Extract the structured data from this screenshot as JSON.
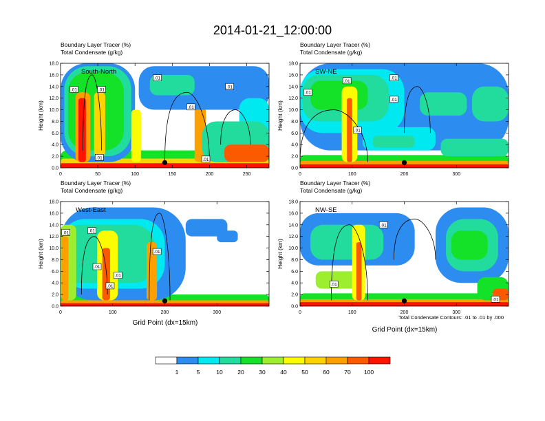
{
  "title": "2014-01-21_12:00:00",
  "panel_header": {
    "line1": "Boundary Layer Tracer",
    "unit1": "(%)",
    "line2": "Total Condensate",
    "unit2": "(g/kg)"
  },
  "ylabel": "Height (km)",
  "xlabel": "Grid Point (dx=15km)",
  "contour_note": "Total Condensate Contours: .01 to .01 by .000",
  "y_ticks": [
    "0.0",
    "2.0",
    "4.0",
    "6.0",
    "8.0",
    "10.0",
    "12.0",
    "14.0",
    "16.0",
    "18.0"
  ],
  "contour_label": ".01",
  "colors": {
    "white": "#ffffff",
    "c1": "#2d8cf0",
    "c5": "#00e8f0",
    "c10": "#22dc9e",
    "c20": "#14e228",
    "c30": "#9cee2e",
    "c40": "#fcfc00",
    "c50": "#fcd200",
    "c60": "#fca000",
    "c70": "#fc5a00",
    "c100": "#fc1400"
  },
  "legend": {
    "labels": [
      "1",
      "5",
      "10",
      "20",
      "30",
      "40",
      "50",
      "60",
      "70",
      "100"
    ],
    "colors": [
      "#ffffff",
      "#2d8cf0",
      "#00e8f0",
      "#22dc9e",
      "#14e228",
      "#9cee2e",
      "#fcfc00",
      "#fcd200",
      "#fca000",
      "#fc5a00",
      "#fc1400"
    ]
  },
  "chart_data": [
    {
      "type": "heatmap",
      "label": "South-North",
      "xlim": [
        0,
        280
      ],
      "ylim": [
        0,
        18
      ],
      "x_ticks": [
        0,
        50,
        100,
        150,
        200,
        250
      ],
      "marker_x": 140,
      "features": [
        {
          "x0": 0,
          "x1": 280,
          "y0": 0,
          "y1": 3.0,
          "c": "c20"
        },
        {
          "x0": 0,
          "x1": 280,
          "y0": 0,
          "y1": 1.6,
          "c": "c50"
        },
        {
          "x0": 0,
          "x1": 280,
          "y0": 0,
          "y1": 0.8,
          "c": "c100"
        },
        {
          "x0": 0,
          "x1": 100,
          "y0": 1,
          "y1": 18,
          "c": "c1"
        },
        {
          "x0": 5,
          "x1": 95,
          "y0": 2,
          "y1": 17.5,
          "c": "c10"
        },
        {
          "x0": 10,
          "x1": 85,
          "y0": 3,
          "y1": 16.5,
          "c": "c20"
        },
        {
          "x0": 20,
          "x1": 40,
          "y0": 1,
          "y1": 13,
          "c": "c60"
        },
        {
          "x0": 24,
          "x1": 34,
          "y0": 1,
          "y1": 12,
          "c": "c100"
        },
        {
          "x0": 45,
          "x1": 60,
          "y0": 2,
          "y1": 13,
          "c": "c50"
        },
        {
          "x0": 95,
          "x1": 108,
          "y0": 1,
          "y1": 10,
          "c": "c40"
        },
        {
          "x0": 180,
          "x1": 195,
          "y0": 1,
          "y1": 11,
          "c": "c60"
        },
        {
          "x0": 105,
          "x1": 280,
          "y0": 10,
          "y1": 17.5,
          "c": "c1"
        },
        {
          "x0": 120,
          "x1": 180,
          "y0": 12.5,
          "y1": 16,
          "c": "c10"
        },
        {
          "x0": 240,
          "x1": 280,
          "y0": 5,
          "y1": 12,
          "c": "c5"
        },
        {
          "x0": 190,
          "x1": 280,
          "y0": 1,
          "y1": 8,
          "c": "c10"
        },
        {
          "x0": 220,
          "x1": 280,
          "y0": 1,
          "y1": 4,
          "c": "c70"
        }
      ],
      "contours": [
        {
          "x0": 140,
          "x1": 200,
          "y0": 1,
          "y1": 13
        },
        {
          "x0": 30,
          "x1": 55,
          "y0": 3,
          "y1": 16
        },
        {
          "x0": 215,
          "x1": 255,
          "y0": 4,
          "y1": 10
        }
      ],
      "labels": [
        {
          "x": 18,
          "y": 13.5
        },
        {
          "x": 55,
          "y": 13.5
        },
        {
          "x": 130,
          "y": 15.5
        },
        {
          "x": 175,
          "y": 10.5
        },
        {
          "x": 227,
          "y": 14
        },
        {
          "x": 52,
          "y": 1.8
        },
        {
          "x": 195,
          "y": 1.5
        }
      ]
    },
    {
      "type": "heatmap",
      "label": "SW-NE",
      "xlim": [
        0,
        400
      ],
      "ylim": [
        0,
        18
      ],
      "x_ticks": [
        0,
        100,
        200,
        300
      ],
      "marker_x": 200,
      "features": [
        {
          "x0": 0,
          "x1": 400,
          "y0": 0,
          "y1": 2.2,
          "c": "c20"
        },
        {
          "x0": 0,
          "x1": 400,
          "y0": 0,
          "y1": 1.2,
          "c": "c60"
        },
        {
          "x0": 0,
          "x1": 400,
          "y0": 0,
          "y1": 0.6,
          "c": "c100"
        },
        {
          "x0": 0,
          "x1": 400,
          "y0": 3,
          "y1": 18,
          "c": "c1"
        },
        {
          "x0": 0,
          "x1": 200,
          "y0": 6,
          "y1": 17,
          "c": "c5"
        },
        {
          "x0": 5,
          "x1": 170,
          "y0": 8,
          "y1": 16,
          "c": "c10"
        },
        {
          "x0": 20,
          "x1": 130,
          "y0": 10,
          "y1": 15,
          "c": "c20"
        },
        {
          "x0": 80,
          "x1": 110,
          "y0": 1,
          "y1": 14,
          "c": "c40"
        },
        {
          "x0": 90,
          "x1": 100,
          "y0": 1,
          "y1": 12,
          "c": "c70"
        },
        {
          "x0": 230,
          "x1": 320,
          "y0": 9,
          "y1": 13,
          "c": "c10"
        },
        {
          "x0": 330,
          "x1": 400,
          "y0": 8,
          "y1": 14,
          "c": "c10"
        },
        {
          "x0": 120,
          "x1": 260,
          "y0": 3,
          "y1": 7,
          "c": "c5"
        },
        {
          "x0": 140,
          "x1": 220,
          "y0": 3.5,
          "y1": 5.5,
          "c": "c10"
        },
        {
          "x0": 270,
          "x1": 400,
          "y0": 2,
          "y1": 5,
          "c": "c10"
        }
      ],
      "contours": [
        {
          "x0": 0,
          "x1": 130,
          "y0": 1,
          "y1": 10
        },
        {
          "x0": 200,
          "x1": 250,
          "y0": 6,
          "y1": 14
        }
      ],
      "labels": [
        {
          "x": 15,
          "y": 13
        },
        {
          "x": 90,
          "y": 15
        },
        {
          "x": 180,
          "y": 15.5
        },
        {
          "x": 180,
          "y": 11.8
        },
        {
          "x": 110,
          "y": 6.5
        }
      ]
    },
    {
      "type": "heatmap",
      "label": "West-East",
      "xlim": [
        0,
        400
      ],
      "ylim": [
        0,
        18
      ],
      "x_ticks": [
        0,
        100,
        200,
        300
      ],
      "marker_x": 200,
      "features": [
        {
          "x0": 0,
          "x1": 400,
          "y0": 0,
          "y1": 2.0,
          "c": "c20"
        },
        {
          "x0": 0,
          "x1": 400,
          "y0": 0,
          "y1": 1.0,
          "c": "c60"
        },
        {
          "x0": 0,
          "x1": 400,
          "y0": 0,
          "y1": 0.5,
          "c": "c100"
        },
        {
          "x0": 0,
          "x1": 240,
          "y0": 1,
          "y1": 17,
          "c": "c1"
        },
        {
          "x0": 0,
          "x1": 200,
          "y0": 3,
          "y1": 15,
          "c": "c5"
        },
        {
          "x0": 0,
          "x1": 180,
          "y0": 4,
          "y1": 14,
          "c": "c10"
        },
        {
          "x0": 0,
          "x1": 30,
          "y0": 1,
          "y1": 14,
          "c": "c30"
        },
        {
          "x0": 2,
          "x1": 15,
          "y0": 1,
          "y1": 12,
          "c": "c60"
        },
        {
          "x0": 70,
          "x1": 110,
          "y0": 1,
          "y1": 13,
          "c": "c40"
        },
        {
          "x0": 80,
          "x1": 95,
          "y0": 1,
          "y1": 10,
          "c": "c70"
        },
        {
          "x0": 165,
          "x1": 185,
          "y0": 1,
          "y1": 11,
          "c": "c60"
        },
        {
          "x0": 240,
          "x1": 320,
          "y0": 12,
          "y1": 15,
          "c": "c1"
        },
        {
          "x0": 300,
          "x1": 340,
          "y0": 11,
          "y1": 13,
          "c": "c1"
        }
      ],
      "contours": [
        {
          "x0": 170,
          "x1": 210,
          "y0": 1,
          "y1": 16
        },
        {
          "x0": 40,
          "x1": 90,
          "y0": 2,
          "y1": 12
        }
      ],
      "labels": [
        {
          "x": 10,
          "y": 12.7
        },
        {
          "x": 60,
          "y": 13
        },
        {
          "x": 70,
          "y": 6.8
        },
        {
          "x": 110,
          "y": 5.3
        },
        {
          "x": 95,
          "y": 3.5
        },
        {
          "x": 185,
          "y": 9.4
        }
      ]
    },
    {
      "type": "heatmap",
      "label": "NW-SE",
      "xlim": [
        0,
        400
      ],
      "ylim": [
        0,
        18
      ],
      "x_ticks": [
        0,
        100,
        200,
        300
      ],
      "marker_x": 200,
      "features": [
        {
          "x0": 0,
          "x1": 400,
          "y0": 0,
          "y1": 2.2,
          "c": "c20"
        },
        {
          "x0": 0,
          "x1": 400,
          "y0": 0,
          "y1": 1.2,
          "c": "c60"
        },
        {
          "x0": 0,
          "x1": 400,
          "y0": 0,
          "y1": 0.7,
          "c": "c100"
        },
        {
          "x0": 0,
          "x1": 220,
          "y0": 7,
          "y1": 16,
          "c": "c1"
        },
        {
          "x0": 20,
          "x1": 160,
          "y0": 8,
          "y1": 14,
          "c": "c10"
        },
        {
          "x0": 30,
          "x1": 110,
          "y0": 3,
          "y1": 6,
          "c": "c30"
        },
        {
          "x0": 100,
          "x1": 125,
          "y0": 1,
          "y1": 14,
          "c": "c40"
        },
        {
          "x0": 108,
          "x1": 118,
          "y0": 1,
          "y1": 11,
          "c": "c70"
        },
        {
          "x0": 260,
          "x1": 400,
          "y0": 4,
          "y1": 17,
          "c": "c1"
        },
        {
          "x0": 280,
          "x1": 380,
          "y0": 6,
          "y1": 15,
          "c": "c10"
        },
        {
          "x0": 290,
          "x1": 360,
          "y0": 8,
          "y1": 13,
          "c": "c20"
        },
        {
          "x0": 340,
          "x1": 400,
          "y0": 1,
          "y1": 5,
          "c": "c20"
        },
        {
          "x0": 370,
          "x1": 400,
          "y0": 1,
          "y1": 3,
          "c": "c70"
        }
      ],
      "contours": [
        {
          "x0": 60,
          "x1": 130,
          "y0": 1,
          "y1": 14
        },
        {
          "x0": 180,
          "x1": 260,
          "y0": 8,
          "y1": 15
        }
      ],
      "labels": [
        {
          "x": 160,
          "y": 14
        },
        {
          "x": 65,
          "y": 3.8
        },
        {
          "x": 375,
          "y": 1.2
        }
      ]
    }
  ]
}
